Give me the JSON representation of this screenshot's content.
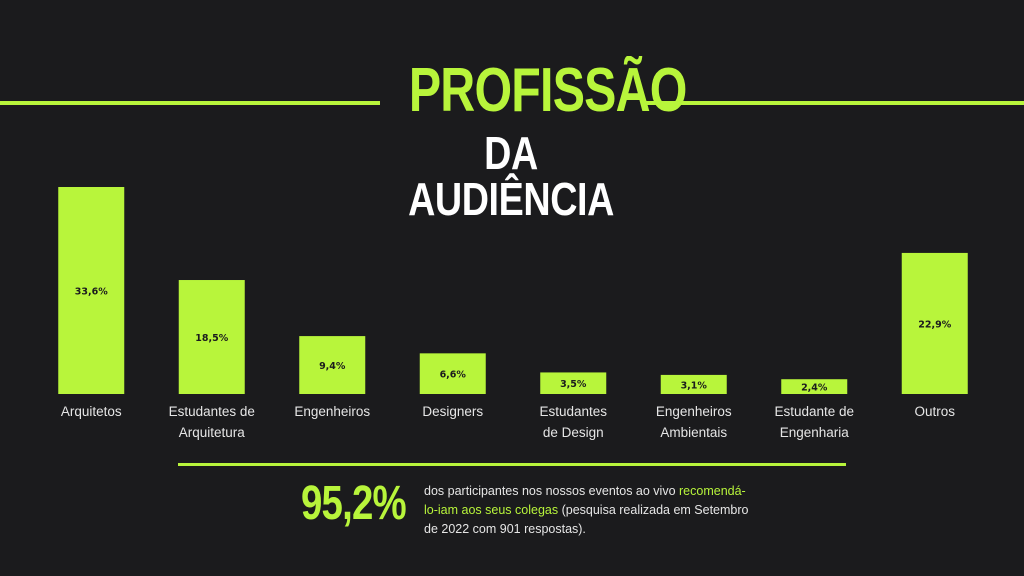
{
  "header": {
    "title_line1": "PROFISSÃO",
    "title_line2": "DA AUDIÊNCIA"
  },
  "colors": {
    "accent": "#b8f53b",
    "background": "#1b1b1d",
    "text": "#e8e8e8"
  },
  "chart_data": {
    "type": "bar",
    "categories": [
      [
        "Arquitetos"
      ],
      [
        "Estudantes de",
        "Arquitetura"
      ],
      [
        "Engenheiros"
      ],
      [
        "Designers"
      ],
      [
        "Estudantes",
        "de Design"
      ],
      [
        "Engenheiros",
        "Ambientais"
      ],
      [
        "Estudante de",
        "Engenharia"
      ],
      [
        "Outros"
      ]
    ],
    "values": [
      33.6,
      18.5,
      9.4,
      6.6,
      3.5,
      3.1,
      2.4,
      22.9
    ],
    "data_labels": [
      "33,6%",
      "18,5%",
      "9,4%",
      "6,6%",
      "3,5%",
      "3,1%",
      "2,4%",
      "22,9%"
    ],
    "ylim": [
      0,
      33.6
    ],
    "grid": false,
    "legend": "none"
  },
  "footer": {
    "stat_value": "95,2%",
    "desc_before": "dos participantes nos nossos eventos ao vivo ",
    "desc_highlight": "recomendá-lo-iam aos seus colegas",
    "desc_after": " (pesquisa realizada em Setembro de 2022 com 901 respostas)."
  }
}
